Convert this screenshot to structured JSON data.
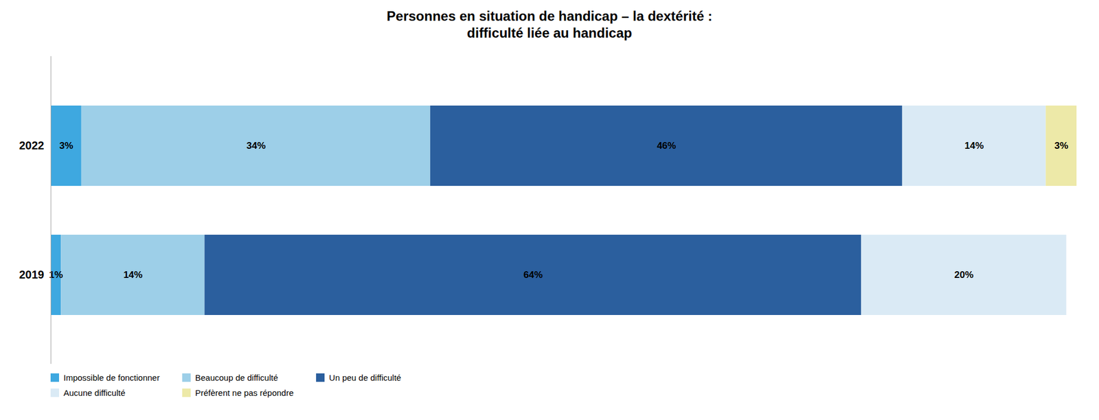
{
  "chart_data": {
    "type": "bar",
    "orientation": "horizontal",
    "stacked": true,
    "title": "Personnes en situation de handicap – la dextérité :\ndifficulté liée au handicap",
    "categories": [
      "2022",
      "2019"
    ],
    "series": [
      {
        "name": "Impossible de fonctionner",
        "color": "#3EA8E0",
        "values": [
          3,
          1
        ],
        "value_labels": [
          "3%",
          "1%"
        ]
      },
      {
        "name": "Beaucoup de difficulté",
        "color": "#9DCFE8",
        "values": [
          34,
          14
        ],
        "value_labels": [
          "34%",
          "14%"
        ]
      },
      {
        "name": "Un peu de difficulté",
        "color": "#2B5F9E",
        "values": [
          46,
          64
        ],
        "value_labels": [
          "46%",
          "64%"
        ]
      },
      {
        "name": "Aucune difficulté",
        "color": "#DAEAF5",
        "values": [
          14,
          20
        ],
        "value_labels": [
          "14%",
          "20%"
        ]
      },
      {
        "name": "Préfèrent ne pas répondre",
        "color": "#EDE9A8",
        "values": [
          3,
          0
        ],
        "value_labels": [
          "3%",
          null
        ]
      }
    ],
    "xlim": [
      0,
      100
    ],
    "data_labels": true,
    "tick_labels": "y",
    "grid": false,
    "legend": "bottom"
  }
}
